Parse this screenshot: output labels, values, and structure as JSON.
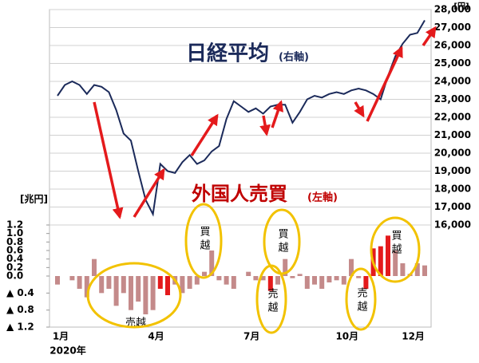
{
  "chart_data": {
    "type": "combo",
    "categories": [
      "1月",
      null,
      null,
      null,
      null,
      null,
      null,
      null,
      null,
      null,
      null,
      null,
      null,
      "4月",
      null,
      null,
      null,
      null,
      null,
      null,
      null,
      null,
      null,
      null,
      null,
      null,
      "7月",
      null,
      null,
      null,
      null,
      null,
      null,
      null,
      null,
      null,
      null,
      null,
      null,
      "10月",
      null,
      null,
      null,
      null,
      null,
      null,
      null,
      null,
      "12月",
      null,
      null
    ],
    "x_sublabel": "2020年",
    "series": [
      {
        "name": "日経平均",
        "name_note": "(右軸)",
        "type": "line",
        "axis": "y2",
        "color": "#1b2a5a",
        "values": [
          23200,
          23800,
          24000,
          23800,
          23300,
          23800,
          23700,
          23400,
          22400,
          21100,
          20700,
          19000,
          17400,
          16600,
          19400,
          19000,
          18900,
          19500,
          19900,
          19400,
          19600,
          20100,
          20400,
          21900,
          22900,
          22600,
          22300,
          22500,
          22200,
          22600,
          22700,
          22700,
          21700,
          22300,
          23000,
          23200,
          23100,
          23300,
          23400,
          23300,
          23500,
          23600,
          23500,
          23300,
          23000,
          24300,
          25400,
          26100,
          26600,
          26700,
          27400
        ]
      },
      {
        "name": "外国人売買",
        "name_note": "(左軸)",
        "type": "bar",
        "axis": "y",
        "colors": [
          "#c48a8a",
          "#c48a8a",
          "#c48a8a",
          "#c48a8a",
          "#c48a8a",
          "#c48a8a",
          "#c48a8a",
          "#c48a8a",
          "#c48a8a",
          "#c48a8a",
          "#c48a8a",
          "#c48a8a",
          "#c48a8a",
          "#c48a8a",
          "#e41a1c",
          "#e41a1c",
          "#c48a8a",
          "#c48a8a",
          "#c48a8a",
          "#c48a8a",
          "#c48a8a",
          "#c48a8a",
          "#c48a8a",
          "#c48a8a",
          "#c48a8a",
          "#c48a8a",
          "#c48a8a",
          "#c48a8a",
          "#c48a8a",
          "#e41a1c",
          "#c48a8a",
          "#c48a8a",
          "#c48a8a",
          "#c48a8a",
          "#c48a8a",
          "#c48a8a",
          "#c48a8a",
          "#c48a8a",
          "#c48a8a",
          "#c48a8a",
          "#c48a8a",
          "#c48a8a",
          "#e41a1c",
          "#e41a1c",
          "#e41a1c",
          "#e41a1c",
          "#c48a8a",
          "#c48a8a",
          "#c48a8a",
          "#c48a8a",
          "#c48a8a"
        ],
        "values": [
          -0.2,
          0,
          -0.1,
          -0.3,
          -0.5,
          0.4,
          -0.4,
          -0.3,
          -0.7,
          -0.4,
          -0.8,
          -0.6,
          -0.9,
          -0.8,
          -0.3,
          -0.45,
          -0.2,
          -0.4,
          -0.3,
          -0.2,
          0.1,
          0.6,
          -0.1,
          -0.2,
          -0.3,
          0,
          0.1,
          -0.1,
          -0.1,
          -0.35,
          -0.2,
          0.4,
          -0.05,
          0.05,
          -0.3,
          -0.2,
          -0.3,
          -0.15,
          -0.1,
          -0.2,
          0.4,
          -0.05,
          -0.3,
          0.65,
          0.7,
          0.95,
          0.6,
          0.3,
          0.05,
          0.3,
          0.25
        ]
      }
    ],
    "ylabel": "[兆円]",
    "ylim": [
      -1.2,
      1.2
    ],
    "yticks": [
      1.2,
      {
        "value": 1,
        "label": "1.0"
      },
      0.8,
      0.6,
      0.4,
      0.2,
      {
        "value": 0,
        "label": "0.0"
      },
      {
        "value": -0.4,
        "label": "▲ 0.4"
      },
      {
        "value": -0.8,
        "label": "▲ 0.8"
      },
      {
        "value": -1.2,
        "label": "▲ 1.2"
      }
    ],
    "y2label": "[円]",
    "y2lim": [
      16000,
      28000
    ],
    "y2ticks": [
      {
        "value": 16000,
        "label": "16,000"
      },
      {
        "value": 17000,
        "label": "17,000"
      },
      {
        "value": 18000,
        "label": "18,000"
      },
      {
        "value": 19000,
        "label": "19,000"
      },
      {
        "value": 20000,
        "label": "20,000"
      },
      {
        "value": 21000,
        "label": "21,000"
      },
      {
        "value": 22000,
        "label": "22,000"
      },
      {
        "value": 23000,
        "label": "23,000"
      },
      {
        "value": 24000,
        "label": "24,000"
      },
      {
        "value": 25000,
        "label": "25,000"
      },
      {
        "value": 26000,
        "label": "26,000"
      },
      {
        "value": 27000,
        "label": "27,000"
      },
      {
        "value": 28000,
        "label": "28,000"
      }
    ],
    "grid": true,
    "annotations": [
      "売越",
      "買越",
      "買越",
      "売越",
      "売越",
      "買越"
    ]
  }
}
